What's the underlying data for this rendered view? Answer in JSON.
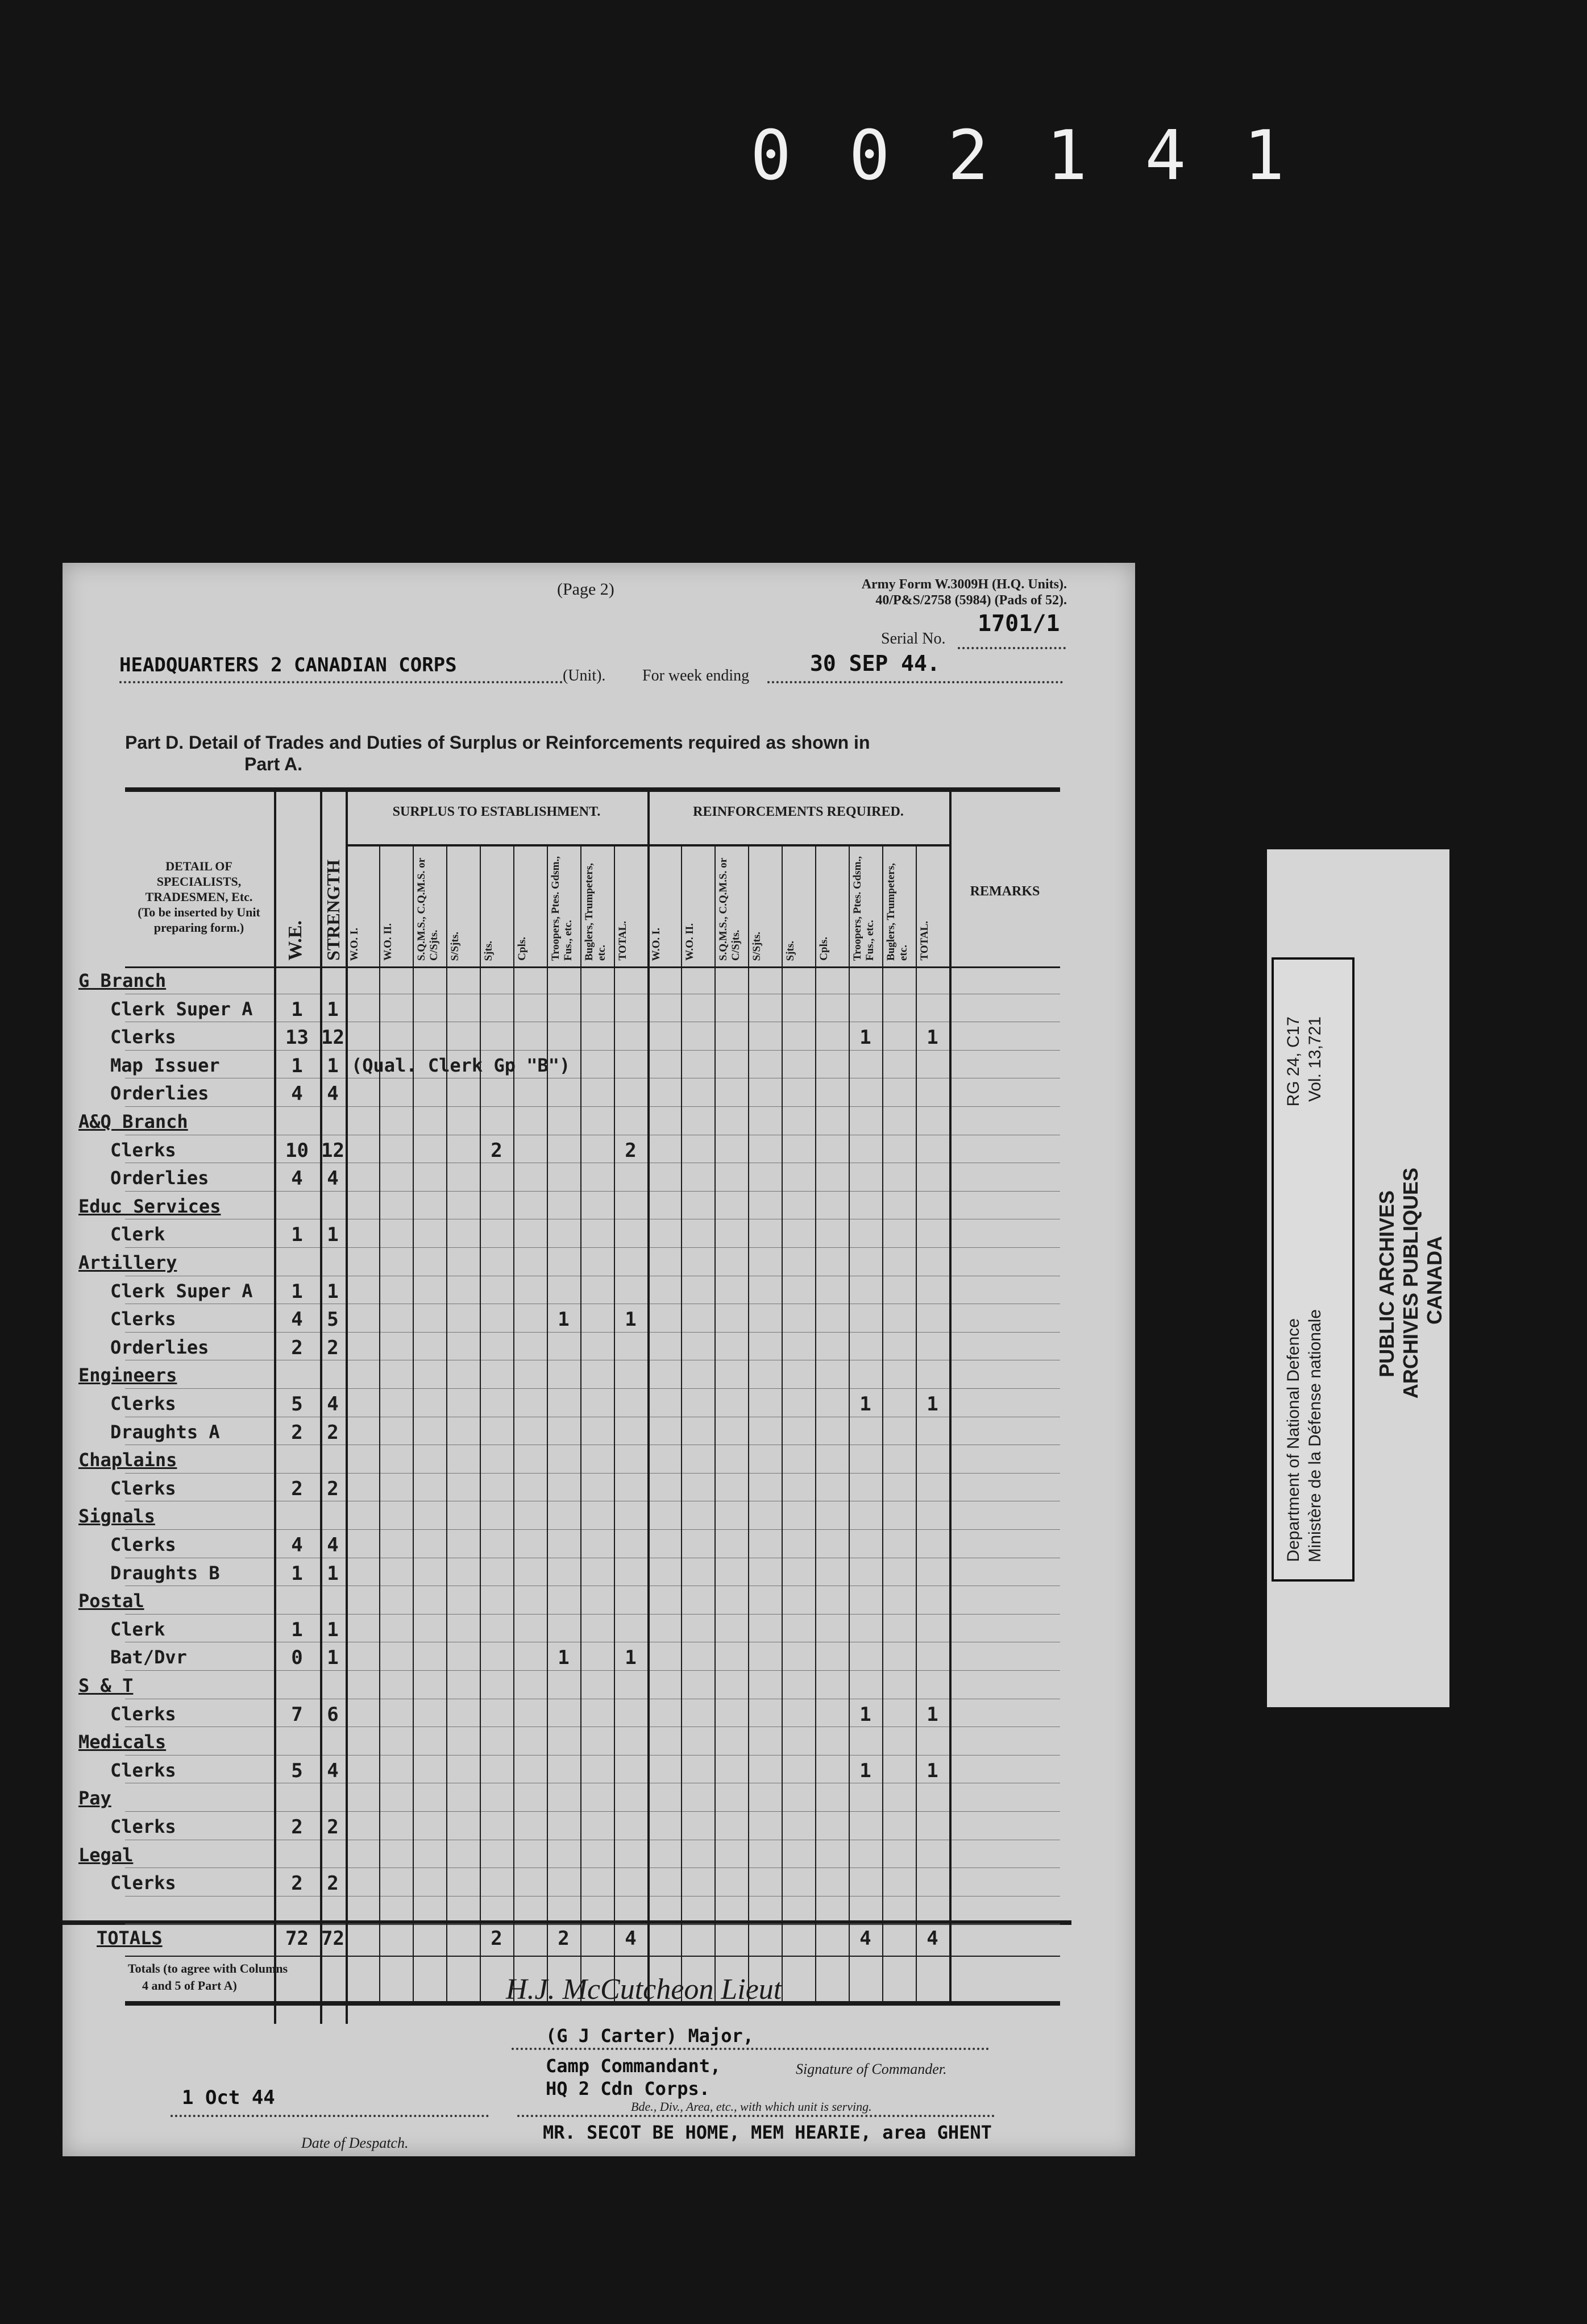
{
  "frame_number": [
    "0",
    "0",
    "2",
    "1",
    "4",
    "1"
  ],
  "form": {
    "page": "(Page 2)",
    "form_id_line1": "Army Form W.3009H (H.Q. Units).",
    "form_id_line2": "40/P&S/2758 (5984) (Pads of 52).",
    "serial_label": "Serial No.",
    "serial_value": "1701/1",
    "unit_value": "HEADQUARTERS 2 CANADIAN CORPS",
    "unit_label": "(Unit).",
    "week_label": "For week ending",
    "week_value": "30 SEP 44.",
    "part_title": "Part D.  Detail of Trades and Duties of Surplus or Reinforcements required as shown in",
    "part_title_2": "Part A."
  },
  "table": {
    "detail_header": [
      "DETAIL OF SPECIALISTS,",
      "TRADESMEN, Etc.",
      "(To be inserted by Unit",
      "preparing form.)"
    ],
    "w_header": "W.E.",
    "strength_header": "STRENGTH",
    "surplus_header": "SURPLUS TO ESTABLISHMENT.",
    "reinf_header": "REINFORCEMENTS REQUIRED.",
    "remarks_header": "REMARKS",
    "sub_columns": [
      "W.O. I.",
      "W.O. II.",
      "S.Q.M.S., C.Q.M.S. or C/Sjts.",
      "S/Sjts.",
      "Sjts.",
      "Cpls.",
      "Troopers, Ptes. Gdsm., Fus., etc.",
      "Buglers, Trumpeters, etc.",
      "TOTAL."
    ],
    "rows": [
      {
        "label": "G Branch",
        "section": true
      },
      {
        "label": "Clerk Super A",
        "w": "1",
        "s": "1"
      },
      {
        "label": "Clerks",
        "w": "13",
        "s": "12",
        "reinf": {
          "6": "1",
          "8": "1"
        }
      },
      {
        "label": "Map Issuer",
        "w": "1",
        "s": "1",
        "note": "(Qual. Clerk Gp \"B\")"
      },
      {
        "label": "Orderlies",
        "w": "4",
        "s": "4"
      },
      {
        "label": "A&Q Branch",
        "section": true
      },
      {
        "label": "Clerks",
        "w": "10",
        "s": "12",
        "surplus": {
          "4": "2",
          "8": "2"
        }
      },
      {
        "label": "Orderlies",
        "w": "4",
        "s": "4"
      },
      {
        "label": "Educ Services",
        "section": true
      },
      {
        "label": "Clerk",
        "w": "1",
        "s": "1"
      },
      {
        "label": "Artillery",
        "section": true
      },
      {
        "label": "Clerk Super A",
        "w": "1",
        "s": "1"
      },
      {
        "label": "Clerks",
        "w": "4",
        "s": "5",
        "surplus": {
          "6": "1",
          "8": "1"
        }
      },
      {
        "label": "Orderlies",
        "w": "2",
        "s": "2"
      },
      {
        "label": "Engineers",
        "section": true
      },
      {
        "label": "Clerks",
        "w": "5",
        "s": "4",
        "reinf": {
          "6": "1",
          "8": "1"
        }
      },
      {
        "label": "Draughts A",
        "w": "2",
        "s": "2"
      },
      {
        "label": "Chaplains",
        "section": true
      },
      {
        "label": "Clerks",
        "w": "2",
        "s": "2"
      },
      {
        "label": "Signals",
        "section": true
      },
      {
        "label": "Clerks",
        "w": "4",
        "s": "4"
      },
      {
        "label": "Draughts B",
        "w": "1",
        "s": "1"
      },
      {
        "label": "Postal",
        "section": true
      },
      {
        "label": "Clerk",
        "w": "1",
        "s": "1"
      },
      {
        "label": "Bat/Dvr",
        "w": "0",
        "s": "1",
        "surplus": {
          "6": "1",
          "8": "1"
        }
      },
      {
        "label": "S & T",
        "section": true
      },
      {
        "label": "Clerks",
        "w": "7",
        "s": "6",
        "reinf": {
          "6": "1",
          "8": "1"
        }
      },
      {
        "label": "Medicals",
        "section": true
      },
      {
        "label": "Clerks",
        "w": "5",
        "s": "4",
        "reinf": {
          "6": "1",
          "8": "1"
        }
      },
      {
        "label": "Pay",
        "section": true
      },
      {
        "label": "Clerks",
        "w": "2",
        "s": "2"
      },
      {
        "label": "Legal",
        "section": true
      },
      {
        "label": "Clerks",
        "w": "2",
        "s": "2"
      }
    ],
    "totals": {
      "label": "TOTALS",
      "w": "72",
      "s": "72",
      "surplus": {
        "4": "2",
        "6": "2",
        "8": "4"
      },
      "reinf": {
        "6": "4",
        "8": "4"
      }
    },
    "totals_note": [
      "Totals (to agree with Columns",
      "4 and 5 of Part A)"
    ]
  },
  "footer": {
    "signature": "H.J. McCutcheon Lieut",
    "signer_name": "(G J Carter) Major,",
    "signer_role": "Camp Commandant,",
    "signer_unit": "HQ 2 Cdn Corps.",
    "signature_label": "Signature of Commander.",
    "despatch_date": "1 Oct 44",
    "despatch_label": "Date of Despatch.",
    "area_label": "Bde., Div., Area, etc., with which unit is serving.",
    "area_value": "MR. SECOT BE HOME, MEM HEARIE, area GHENT"
  },
  "archive_label": {
    "dept_en": "Department of National Defence",
    "dept_fr": "Ministère de la Défense nationale",
    "rg": "RG 24, C17",
    "vol": "Vol. 13,721",
    "pa_en": "PUBLIC ARCHIVES",
    "pa_fr": "ARCHIVES PUBLIQUES",
    "country": "CANADA"
  }
}
